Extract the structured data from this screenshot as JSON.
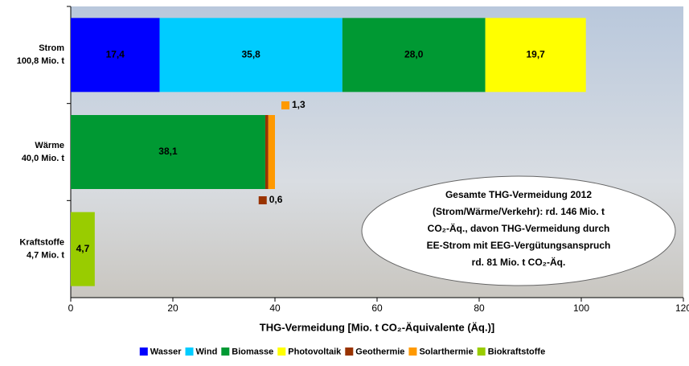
{
  "chart_data": {
    "type": "stacked-barh",
    "categories": [
      "Strom",
      "Wärme",
      "Kraftstoffe"
    ],
    "totals": [
      100.8,
      40.0,
      4.7
    ],
    "total_labels": [
      "100,8 Mio. t",
      "40,0 Mio. t",
      "4,7 Mio. t"
    ],
    "series": [
      {
        "name": "Wasser",
        "color": "#0000ff",
        "values": [
          17.4,
          null,
          null
        ],
        "value_labels": [
          "17,4",
          null,
          null
        ]
      },
      {
        "name": "Wind",
        "color": "#00ccff",
        "values": [
          35.8,
          null,
          null
        ],
        "value_labels": [
          "35,8",
          null,
          null
        ]
      },
      {
        "name": "Biomasse",
        "color": "#009933",
        "values": [
          28.0,
          38.1,
          null
        ],
        "value_labels": [
          "28,0",
          "38,1",
          null
        ]
      },
      {
        "name": "Photovoltaik",
        "color": "#ffff00",
        "values": [
          19.7,
          null,
          null
        ],
        "value_labels": [
          "19,7",
          null,
          null
        ]
      },
      {
        "name": "Geothermie",
        "color": "#993300",
        "values": [
          null,
          0.6,
          null
        ],
        "value_labels": [
          null,
          "0,6",
          null
        ]
      },
      {
        "name": "Solarthermie",
        "color": "#ff9900",
        "values": [
          null,
          1.3,
          null
        ],
        "value_labels": [
          null,
          "1,3",
          null
        ]
      },
      {
        "name": "Biokraftstoffe",
        "color": "#99cc00",
        "values": [
          null,
          null,
          4.7
        ],
        "value_labels": [
          null,
          null,
          "4,7"
        ]
      }
    ],
    "xlim": [
      0,
      120
    ],
    "xticks": [
      0,
      20,
      40,
      60,
      80,
      100,
      120
    ],
    "xlabel": "THG-Vermeidung [Mio. t CO₂-Äquivalente (Äq.)]",
    "annotation": [
      "Gesamte THG-Vermeidung 2012",
      "(Strom/Wärme/Verkehr): rd. 146 Mio. t",
      "CO₂-Äq., davon THG-Vermeidung durch",
      "EE-Strom mit EEG-Vergütungsanspruch",
      "rd. 81 Mio. t CO₂-Äq."
    ],
    "legend": "bottom"
  }
}
